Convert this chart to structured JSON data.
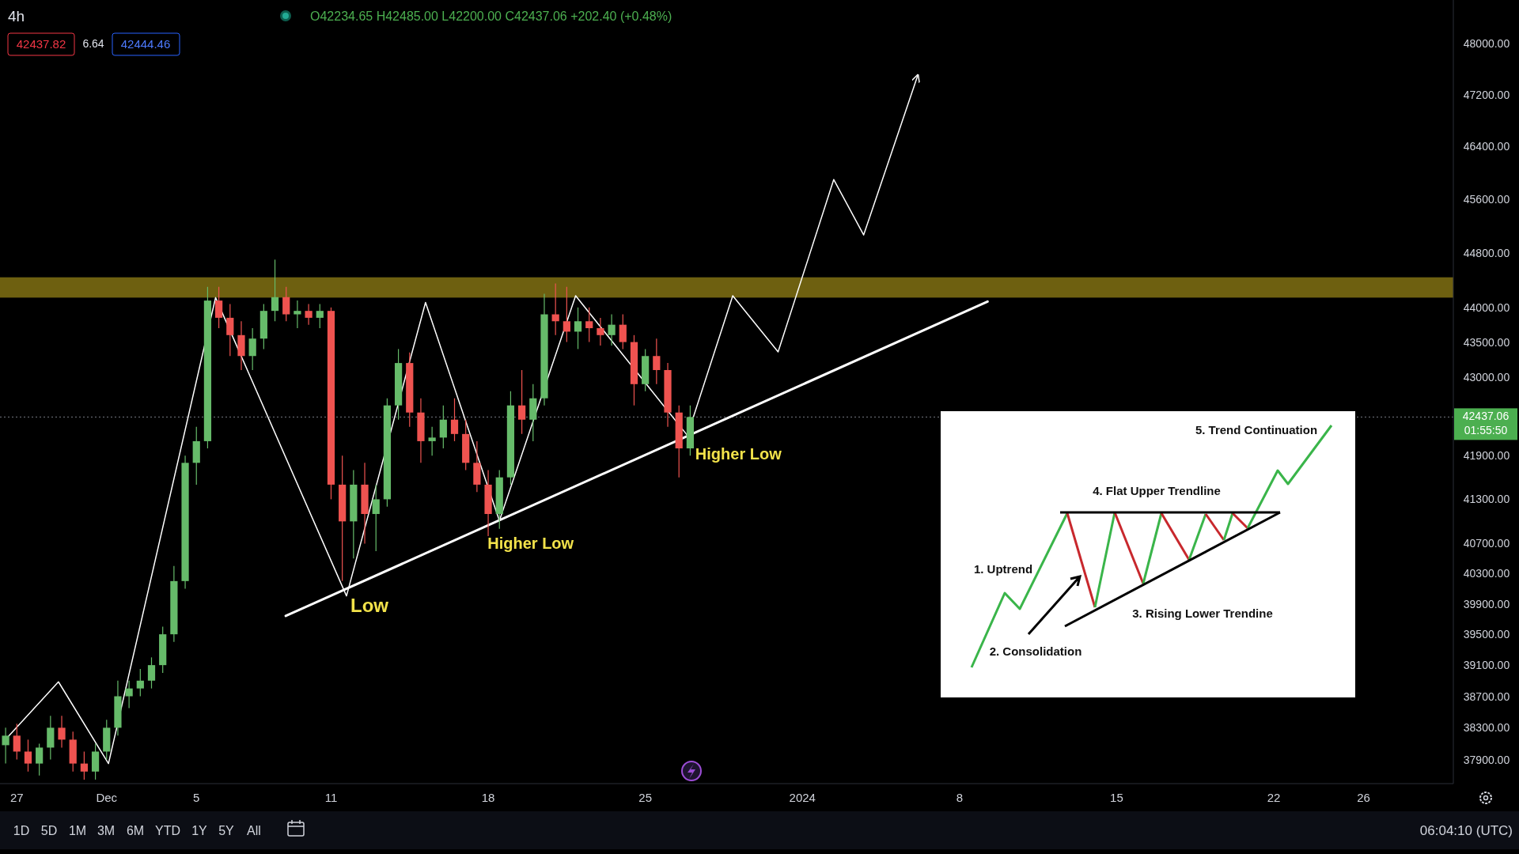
{
  "chart_data": {
    "type": "candlestick",
    "title": "4h",
    "log": true,
    "grid": false,
    "xlim": [
      "2023-11-26T06:00",
      "2024-01-30T00:00"
    ],
    "xticks": [
      {
        "value": "2023-11-27",
        "label": "27"
      },
      {
        "value": "2023-12-01",
        "label": "Dec"
      },
      {
        "value": "2023-12-05",
        "label": "5"
      },
      {
        "value": "2023-12-11",
        "label": "11"
      },
      {
        "value": "2023-12-18",
        "label": "18"
      },
      {
        "value": "2023-12-25",
        "label": "25"
      },
      {
        "value": "2024-01-01",
        "label": "2024"
      },
      {
        "value": "2024-01-08",
        "label": "8"
      },
      {
        "value": "2024-01-15",
        "label": "15"
      },
      {
        "value": "2024-01-22",
        "label": "22"
      },
      {
        "value": "2024-01-26",
        "label": "26"
      }
    ],
    "ylim": [
      37600,
      48700
    ],
    "yticks": [
      {
        "value": 48000,
        "label": "48000.00"
      },
      {
        "value": 47200,
        "label": "47200.00"
      },
      {
        "value": 46400,
        "label": "46400.00"
      },
      {
        "value": 45600,
        "label": "45600.00"
      },
      {
        "value": 44800,
        "label": "44800.00"
      },
      {
        "value": 44000,
        "label": "44000.00"
      },
      {
        "value": 43500,
        "label": "43500.00"
      },
      {
        "value": 43000,
        "label": "43000.00"
      },
      {
        "value": 41900,
        "label": "41900.00"
      },
      {
        "value": 41300,
        "label": "41300.00"
      },
      {
        "value": 40700,
        "label": "40700.00"
      },
      {
        "value": 40300,
        "label": "40300.00"
      },
      {
        "value": 39900,
        "label": "39900.00"
      },
      {
        "value": 39500,
        "label": "39500.00"
      },
      {
        "value": 39100,
        "label": "39100.00"
      },
      {
        "value": 38700,
        "label": "38700.00"
      },
      {
        "value": 38300,
        "label": "38300.00"
      },
      {
        "value": 37900,
        "label": "37900.00"
      }
    ],
    "x": [
      "2023-11-26T12:00",
      "2023-11-27T00:00",
      "2023-11-27T12:00",
      "2023-11-28T00:00",
      "2023-11-28T12:00",
      "2023-11-29T00:00",
      "2023-11-29T12:00",
      "2023-11-30T00:00",
      "2023-11-30T12:00",
      "2023-12-01T00:00",
      "2023-12-01T12:00",
      "2023-12-02T00:00",
      "2023-12-02T12:00",
      "2023-12-03T00:00",
      "2023-12-03T12:00",
      "2023-12-04T00:00",
      "2023-12-04T12:00",
      "2023-12-05T00:00",
      "2023-12-05T12:00",
      "2023-12-06T00:00",
      "2023-12-06T12:00",
      "2023-12-07T00:00",
      "2023-12-07T12:00",
      "2023-12-08T00:00",
      "2023-12-08T12:00",
      "2023-12-09T00:00",
      "2023-12-09T12:00",
      "2023-12-10T00:00",
      "2023-12-10T12:00",
      "2023-12-11T00:00",
      "2023-12-11T12:00",
      "2023-12-12T00:00",
      "2023-12-12T12:00",
      "2023-12-13T00:00",
      "2023-12-13T12:00",
      "2023-12-14T00:00",
      "2023-12-14T12:00",
      "2023-12-15T00:00",
      "2023-12-15T12:00",
      "2023-12-16T00:00",
      "2023-12-16T12:00",
      "2023-12-17T00:00",
      "2023-12-17T12:00",
      "2023-12-18T00:00",
      "2023-12-18T12:00",
      "2023-12-19T00:00",
      "2023-12-19T12:00",
      "2023-12-20T00:00",
      "2023-12-20T12:00",
      "2023-12-21T00:00",
      "2023-12-21T12:00",
      "2023-12-22T00:00",
      "2023-12-22T12:00",
      "2023-12-23T00:00",
      "2023-12-23T12:00",
      "2023-12-24T00:00",
      "2023-12-24T12:00",
      "2023-12-25T00:00",
      "2023-12-25T12:00",
      "2023-12-26T00:00",
      "2023-12-26T12:00",
      "2023-12-27T00:00"
    ],
    "ohlc": [
      [
        38080,
        38300,
        37850,
        38200
      ],
      [
        38200,
        38350,
        37900,
        38000
      ],
      [
        38000,
        38150,
        37750,
        37850
      ],
      [
        37850,
        38100,
        37700,
        38050
      ],
      [
        38050,
        38450,
        37900,
        38300
      ],
      [
        38300,
        38450,
        38050,
        38150
      ],
      [
        38150,
        38250,
        37750,
        37850
      ],
      [
        37850,
        38000,
        37650,
        37750
      ],
      [
        37750,
        38100,
        37650,
        38000
      ],
      [
        38000,
        38400,
        37900,
        38300
      ],
      [
        38300,
        38900,
        38200,
        38700
      ],
      [
        38700,
        38900,
        38550,
        38800
      ],
      [
        38800,
        39050,
        38700,
        38900
      ],
      [
        38900,
        39200,
        38800,
        39100
      ],
      [
        39100,
        39600,
        39000,
        39500
      ],
      [
        39500,
        40400,
        39400,
        40200
      ],
      [
        40200,
        41900,
        40100,
        41800
      ],
      [
        41800,
        42300,
        41500,
        42100
      ],
      [
        42100,
        44300,
        42000,
        44100
      ],
      [
        44100,
        44300,
        43700,
        43850
      ],
      [
        43850,
        44050,
        43300,
        43600
      ],
      [
        43600,
        43800,
        43100,
        43300
      ],
      [
        43300,
        43700,
        43100,
        43550
      ],
      [
        43550,
        44050,
        43400,
        43950
      ],
      [
        43950,
        44700,
        43800,
        44150
      ],
      [
        44150,
        44300,
        43800,
        43900
      ],
      [
        43900,
        44100,
        43700,
        43950
      ],
      [
        43950,
        44050,
        43750,
        43850
      ],
      [
        43850,
        44050,
        43700,
        43950
      ],
      [
        43950,
        44000,
        41300,
        41500
      ],
      [
        41500,
        41900,
        40200,
        41000
      ],
      [
        41000,
        41700,
        40500,
        41500
      ],
      [
        41500,
        41800,
        40700,
        41100
      ],
      [
        41100,
        41500,
        40600,
        41300
      ],
      [
        41300,
        42700,
        41200,
        42600
      ],
      [
        42600,
        43400,
        42400,
        43200
      ],
      [
        43200,
        43350,
        42300,
        42500
      ],
      [
        42500,
        42700,
        41800,
        42100
      ],
      [
        42100,
        42300,
        41900,
        42150
      ],
      [
        42150,
        42600,
        42000,
        42400
      ],
      [
        42400,
        42700,
        42100,
        42200
      ],
      [
        42200,
        42400,
        41700,
        41800
      ],
      [
        41800,
        42100,
        41400,
        41500
      ],
      [
        41500,
        41700,
        40800,
        41100
      ],
      [
        41100,
        41700,
        40900,
        41600
      ],
      [
        41600,
        42800,
        41500,
        42600
      ],
      [
        42600,
        43100,
        42200,
        42400
      ],
      [
        42400,
        42900,
        42100,
        42700
      ],
      [
        42700,
        44200,
        42600,
        43900
      ],
      [
        43900,
        44350,
        43600,
        43800
      ],
      [
        43800,
        44300,
        43500,
        43650
      ],
      [
        43650,
        44000,
        43400,
        43800
      ],
      [
        43800,
        44000,
        43500,
        43700
      ],
      [
        43700,
        43850,
        43450,
        43600
      ],
      [
        43600,
        43900,
        43450,
        43750
      ],
      [
        43750,
        43900,
        43400,
        43500
      ],
      [
        43500,
        43600,
        42600,
        42900
      ],
      [
        42900,
        43400,
        42800,
        43300
      ],
      [
        43300,
        43550,
        42900,
        43100
      ],
      [
        43100,
        43200,
        42300,
        42500
      ],
      [
        42500,
        42600,
        41600,
        42000
      ],
      [
        42000,
        42600,
        41900,
        42437.06
      ]
    ],
    "colors": [
      "#66bb6a",
      "#ef5350",
      "#ef5350",
      "#66bb6a",
      "#66bb6a",
      "#ef5350",
      "#ef5350",
      "#ef5350",
      "#66bb6a",
      "#66bb6a",
      "#66bb6a",
      "#66bb6a",
      "#66bb6a",
      "#66bb6a",
      "#66bb6a",
      "#66bb6a",
      "#66bb6a",
      "#66bb6a",
      "#66bb6a",
      "#ef5350",
      "#ef5350",
      "#ef5350",
      "#66bb6a",
      "#66bb6a",
      "#66bb6a",
      "#ef5350",
      "#66bb6a",
      "#ef5350",
      "#66bb6a",
      "#ef5350",
      "#ef5350",
      "#66bb6a",
      "#ef5350",
      "#66bb6a",
      "#66bb6a",
      "#66bb6a",
      "#ef5350",
      "#ef5350",
      "#66bb6a",
      "#66bb6a",
      "#ef5350",
      "#ef5350",
      "#ef5350",
      "#ef5350",
      "#66bb6a",
      "#66bb6a",
      "#ef5350",
      "#66bb6a",
      "#66bb6a",
      "#ef5350",
      "#ef5350",
      "#66bb6a",
      "#ef5350",
      "#ef5350",
      "#66bb6a",
      "#ef5350",
      "#ef5350",
      "#66bb6a",
      "#ef5350",
      "#ef5350",
      "#ef5350",
      "#66bb6a"
    ],
    "series": [
      {
        "type": "line",
        "color": "#ffffff",
        "x": [
          "2023-11-26T14:00",
          "2023-11-28T20:30",
          "2023-12-01T02:00",
          "2023-12-05T20:30",
          "2023-12-11T16:30",
          "2023-12-15T05:00",
          "2023-12-18T12:00",
          "2023-12-21T21:30",
          "2023-12-26T21:00",
          "2023-12-28T21:30",
          "2023-12-30T22:00",
          "2024-01-02T09:30",
          "2024-01-03T17:30",
          "2024-01-06T03:30"
        ],
        "values": [
          38178,
          38885,
          37850,
          44143,
          40003,
          44072,
          41008,
          44171,
          42180,
          44171,
          43359,
          45898,
          45066,
          47511
        ]
      },
      {
        "type": "line",
        "color": "#ffffff",
        "x": [
          "2023-12-08T23:30",
          "2024-01-09T06:00"
        ],
        "values": [
          39740,
          44085
        ]
      }
    ],
    "bands": [
      {
        "axis": "y",
        "from": 44143,
        "to": 44440,
        "color": "#7a6a12"
      }
    ],
    "ref_lines": [
      {
        "axis": "y",
        "value": 42437.06,
        "label": "42437.06",
        "color": "#787b86",
        "line_style": "dotted"
      }
    ],
    "annotations": [
      "O42234.65 H42485.00 L42200.00 C42437.06 +202.40 (+0.48%)",
      "42437.82",
      "6.64",
      "42444.46",
      "01:55:50",
      {
        "text": "Low",
        "x": "2023-12-11T16:30",
        "y": 40003
      },
      {
        "text": "Higher Low",
        "x": "2023-12-18T12:00",
        "y": 41008
      },
      {
        "text": "Higher Low",
        "x": "2023-12-26T21:00",
        "y": 42180
      },
      "1. Uptrend",
      "2. Consolidation",
      "3. Rising Lower Trendine",
      "4. Flat Upper Trendline",
      "5. Trend Continuation",
      "1D",
      "5D",
      "1M",
      "3M",
      "6M",
      "YTD",
      "1Y",
      "5Y",
      "All",
      "06:04:10 (UTC)"
    ]
  }
}
